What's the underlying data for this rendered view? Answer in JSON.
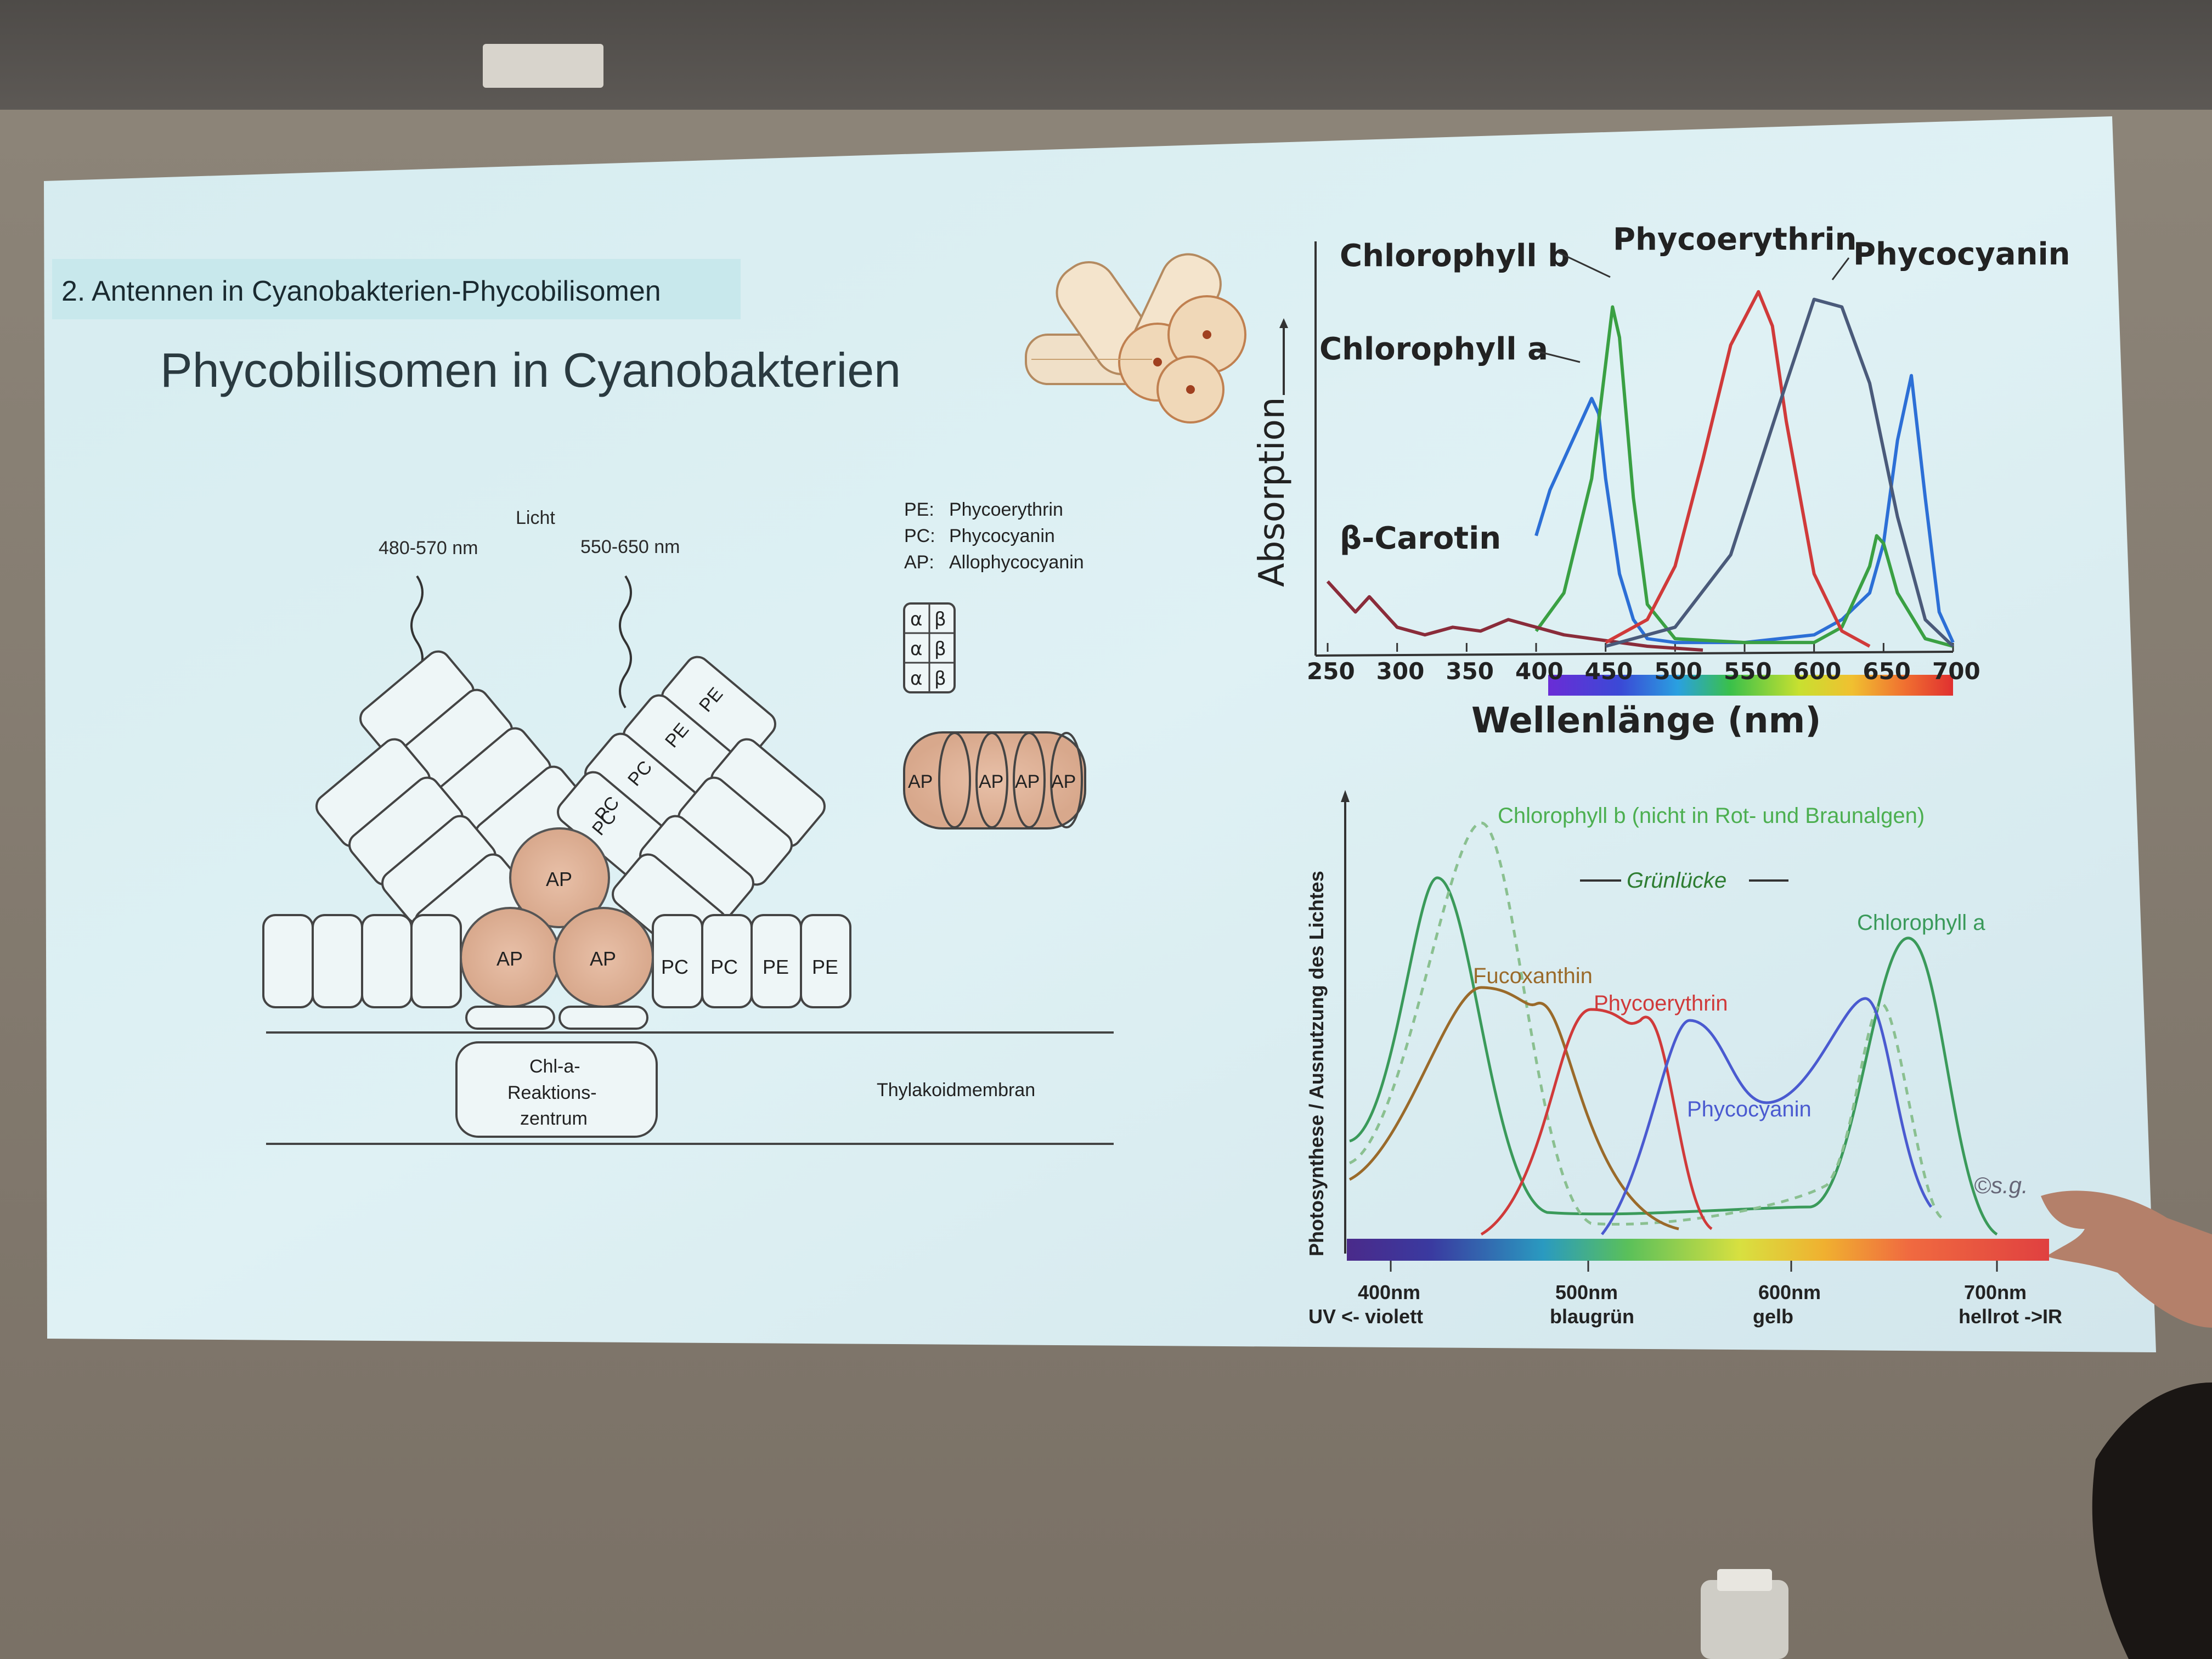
{
  "slide": {
    "section_label": "2. Antennen in Cyanobakterien-Phycobilisomen",
    "title": "Phycobilisomen in Cyanobakterien"
  },
  "phycobilisome_diagram": {
    "light_label": "Licht",
    "wavelength_left": "480-570 nm",
    "wavelength_right": "550-650 nm",
    "legend": [
      {
        "abbr": "PE:",
        "name": "Phycoerythrin"
      },
      {
        "abbr": "PC:",
        "name": "Phycocyanin"
      },
      {
        "abbr": "AP:",
        "name": "Allophycocyanin"
      }
    ],
    "subunit_alpha": "α",
    "subunit_beta": "β",
    "cylinder_labels": [
      "AP",
      "AP",
      "AP",
      "AP"
    ],
    "rod_labels": [
      "PE",
      "PE",
      "PC",
      "PC",
      "PC"
    ],
    "core_labels": [
      "AP",
      "AP",
      "AP"
    ],
    "right_stack_labels": [
      "PC",
      "PC",
      "PE",
      "PE"
    ],
    "reaction_center": [
      "Chl-a-",
      "Reaktions-",
      "zentrum"
    ],
    "membrane_label": "Thylakoidmembran"
  },
  "absorption_chart": {
    "chart_data": {
      "type": "line",
      "ylabel": "Absorption",
      "xlabel": "Wellenlänge (nm)",
      "x_ticks": [
        "250",
        "300",
        "350",
        "400",
        "450",
        "500",
        "550",
        "600",
        "650",
        "700"
      ],
      "xlim": [
        250,
        700
      ],
      "series": [
        {
          "name": "Chlorophyll a",
          "color": "#2c6fd6",
          "x": [
            400,
            410,
            420,
            430,
            440,
            445,
            450,
            460,
            470,
            480,
            500,
            550,
            600,
            620,
            640,
            650,
            660,
            670,
            680,
            690,
            700
          ],
          "y": [
            0.3,
            0.42,
            0.5,
            0.58,
            0.66,
            0.62,
            0.45,
            0.2,
            0.08,
            0.03,
            0.02,
            0.02,
            0.04,
            0.08,
            0.15,
            0.28,
            0.55,
            0.72,
            0.4,
            0.1,
            0.02
          ]
        },
        {
          "name": "Chlorophyll b",
          "color": "#3aa043",
          "x": [
            400,
            420,
            440,
            450,
            455,
            460,
            470,
            480,
            500,
            550,
            600,
            620,
            640,
            645,
            650,
            660,
            680,
            700
          ],
          "y": [
            0.05,
            0.15,
            0.45,
            0.75,
            0.9,
            0.82,
            0.4,
            0.12,
            0.03,
            0.02,
            0.02,
            0.06,
            0.22,
            0.3,
            0.28,
            0.15,
            0.03,
            0.01
          ]
        },
        {
          "name": "β-Carotin",
          "color": "#8a2c3a",
          "x": [
            250,
            270,
            280,
            290,
            300,
            320,
            340,
            360,
            380,
            400,
            420,
            440,
            460,
            480,
            500,
            520
          ],
          "y": [
            0.18,
            0.1,
            0.14,
            0.1,
            0.06,
            0.04,
            0.06,
            0.05,
            0.08,
            0.06,
            0.04,
            0.03,
            0.02,
            0.01,
            0.005,
            0.0
          ]
        },
        {
          "name": "Phycoerythrin",
          "color": "#d03a3a",
          "x": [
            450,
            480,
            500,
            520,
            540,
            560,
            570,
            580,
            600,
            620,
            640
          ],
          "y": [
            0.02,
            0.08,
            0.22,
            0.5,
            0.8,
            0.94,
            0.85,
            0.6,
            0.2,
            0.05,
            0.01
          ]
        },
        {
          "name": "Phycocyanin",
          "color": "#4a5a7a",
          "x": [
            450,
            500,
            540,
            580,
            600,
            620,
            640,
            660,
            680,
            700
          ],
          "y": [
            0.01,
            0.06,
            0.25,
            0.7,
            0.92,
            0.9,
            0.7,
            0.35,
            0.08,
            0.01
          ]
        }
      ],
      "labels": [
        "Chlorophyll b",
        "Phycoerythrin",
        "Phycocyanin",
        "Chlorophyll a",
        "β-Carotin"
      ]
    }
  },
  "photosynthesis_chart": {
    "chart_data": {
      "type": "line",
      "ylabel": "Photosynthese / Ausnutzung des Lichtes",
      "x_ticks": [
        {
          "value": "400nm",
          "sub": "UV <- violett"
        },
        {
          "value": "500nm",
          "sub": "blaugrün"
        },
        {
          "value": "600nm",
          "sub": "gelb"
        },
        {
          "value": "700nm",
          "sub": "hellrot ->IR"
        }
      ],
      "gap_label": "Grünlücke",
      "series_labels": [
        {
          "name": "Chlorophyll b (nicht in Rot- und Braunalgen)",
          "color": "#4caf50"
        },
        {
          "name": "Chlorophyll a",
          "color": "#3a9a5a"
        },
        {
          "name": "Fucoxanthin",
          "color": "#9a6a2a"
        },
        {
          "name": "Phycoerythrin",
          "color": "#d03a3a"
        },
        {
          "name": "Phycocyanin",
          "color": "#4a5ad0"
        }
      ],
      "copyright": "©s.g."
    }
  }
}
